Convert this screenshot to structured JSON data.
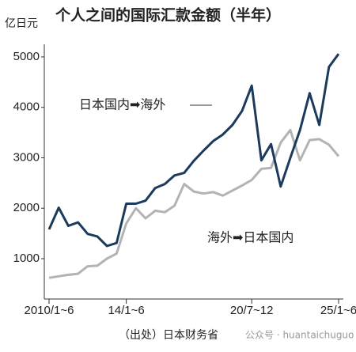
{
  "chart_data": {
    "type": "line",
    "title": "个人之间的国际汇款金额（半年）",
    "y_axis_label": "亿日元",
    "source": "（出处）日本财务省",
    "watermark": "公众号 · huantaichuguo",
    "categories": [
      "2010/1~6",
      null,
      null,
      null,
      null,
      null,
      null,
      null,
      "14/1~6",
      null,
      null,
      null,
      null,
      null,
      null,
      null,
      null,
      null,
      null,
      null,
      null,
      "20/7~12",
      null,
      null,
      null,
      null,
      null,
      null,
      null,
      null,
      "25/1~6"
    ],
    "series": [
      {
        "name": "日本国内➡海外",
        "color": "#1b3a5c",
        "values": [
          1580,
          2010,
          1650,
          1720,
          1490,
          1440,
          1250,
          1310,
          2090,
          2090,
          2150,
          2400,
          2480,
          2650,
          2700,
          2940,
          3140,
          3330,
          3460,
          3650,
          3930,
          4430,
          2950,
          3270,
          2430,
          3000,
          3550,
          4280,
          3650,
          4800,
          5060
        ]
      },
      {
        "name": "海外➡日本国内",
        "color": "#b3b3b3",
        "values": [
          620,
          650,
          680,
          700,
          850,
          860,
          1000,
          1100,
          1700,
          2000,
          1800,
          1950,
          1920,
          2050,
          2480,
          2330,
          2290,
          2320,
          2250,
          2350,
          2450,
          2560,
          2780,
          2800,
          3300,
          3550,
          2950,
          3350,
          3370,
          3260,
          3030
        ]
      }
    ],
    "ylim": [
      200,
      5250
    ],
    "yticks": [
      1000,
      2000,
      3000,
      4000,
      5000
    ],
    "grid": false
  }
}
